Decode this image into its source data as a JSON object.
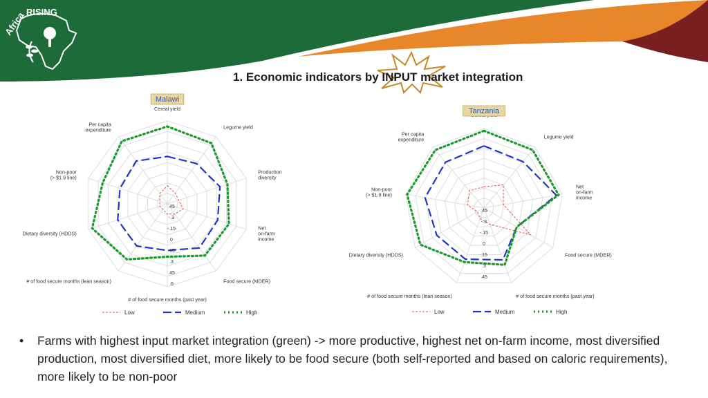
{
  "slide": {
    "title": "1. Economic indicators by INPUT market integration",
    "logo_text": "Africa RISING",
    "bullet": "Farms with highest input market integration (green) -> more productive, highest net on-farm income, most diversified production, most diversified diet, more likely to be food secure (both self-reported and based on caloric requirements), more likely to be non-poor"
  },
  "colors": {
    "green_band": "#1e6b3a",
    "orange_band": "#e8872a",
    "maroon_band": "#7a1f1f",
    "low": "#e05050",
    "medium": "#2233cc",
    "high": "#1a9a2a"
  },
  "chart_data": [
    {
      "type": "radar",
      "title": "Malawi",
      "axes": [
        "Cereal yield",
        "Legume yield",
        "Production diversity",
        "Net on-farm income",
        "Food secure (MDER)",
        "# of food secure months (past year)",
        "# of food secure months (lean season)",
        "Dietary diversity (HDDS)",
        "Non-poor (> $1.9 line)",
        "Per capita expenditure"
      ],
      "tick_labels": [
        ".45",
        "-.3",
        "-.15",
        "0",
        ".15",
        ".3",
        ".45",
        ".6"
      ],
      "rlim": [
        -0.45,
        0.6
      ],
      "legend": {
        "position": "bottom",
        "entries": [
          "Low",
          "Medium",
          "High"
        ]
      },
      "series": [
        {
          "name": "Low",
          "values": [
            -0.22,
            -0.28,
            -0.3,
            -0.24,
            -0.29,
            -0.32,
            -0.36,
            -0.35,
            -0.35,
            -0.29
          ]
        },
        {
          "name": "Medium",
          "values": [
            0.15,
            0.18,
            0.25,
            0.22,
            0.24,
            0.14,
            0.21,
            0.21,
            0.18,
            0.22
          ]
        },
        {
          "name": "High",
          "values": [
            0.53,
            0.5,
            0.35,
            0.37,
            0.36,
            0.22,
            0.42,
            0.55,
            0.41,
            0.53
          ]
        }
      ]
    },
    {
      "type": "radar",
      "title": "Tanzania",
      "axes": [
        "Cereal yield",
        "Legume yield",
        "Net on-farm income",
        "Food secure (MDER)",
        "# of food secure months (past year)",
        "# of food secure months (lean season)",
        "Dietary diversity (HDDS)",
        "Non-poor (> $1.9 line)",
        "Per capita expenditure"
      ],
      "tick_labels": [
        ".45",
        "-.3",
        "-.15",
        "0",
        ".15",
        ".3",
        ".45"
      ],
      "rlim": [
        -0.6,
        0.45
      ],
      "legend": {
        "position": "bottom",
        "entries": [
          "Low",
          "Medium",
          "High"
        ]
      },
      "series": [
        {
          "name": "Low",
          "values": [
            -0.32,
            -0.2,
            -0.34,
            0.11,
            -0.37,
            -0.45,
            -0.5,
            -0.38,
            -0.3
          ]
        },
        {
          "name": "Medium",
          "values": [
            0.22,
            0.2,
            0.37,
            -0.1,
            0.13,
            0.12,
            0.12,
            0.19,
            0.19
          ]
        },
        {
          "name": "High",
          "values": [
            0.42,
            0.4,
            0.4,
            -0.1,
            0.2,
            0.16,
            0.37,
            0.43,
            0.4
          ]
        }
      ]
    }
  ]
}
